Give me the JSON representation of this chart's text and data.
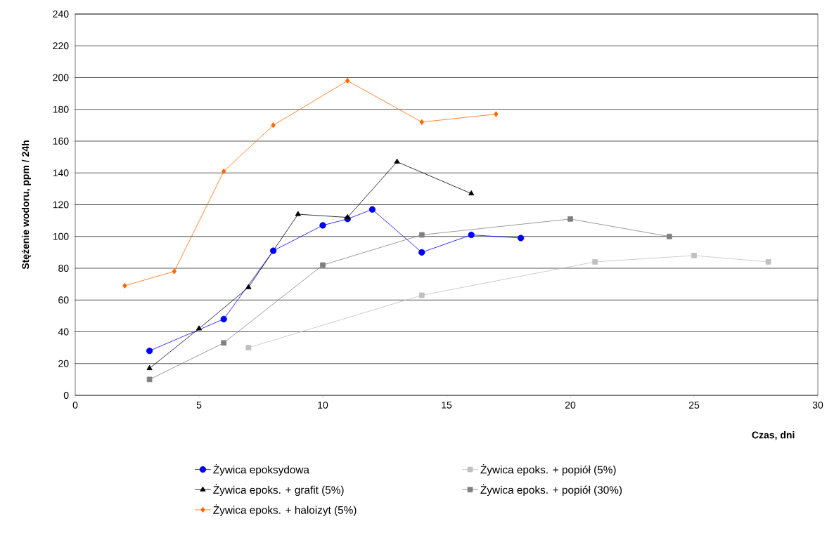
{
  "chart_data": {
    "type": "line",
    "xlabel": "Czas, dni",
    "ylabel": "Stężenie wodoru, ppm / 24h",
    "xlim": [
      0,
      30
    ],
    "xticks": [
      0,
      5,
      10,
      15,
      20,
      25,
      30
    ],
    "ylim": [
      0,
      240
    ],
    "yticks": [
      0,
      20,
      40,
      60,
      80,
      100,
      120,
      140,
      160,
      180,
      200,
      220,
      240
    ],
    "grid": "y",
    "legend": "bottom",
    "series": [
      {
        "name": "Żywica epoksydowa",
        "color": "#0000ff",
        "marker": "circle",
        "x": [
          3,
          6,
          8,
          10,
          11,
          12,
          14,
          16,
          18
        ],
        "values": [
          28,
          48,
          91,
          107,
          111,
          117,
          90,
          101,
          99
        ]
      },
      {
        "name": "Żywica epoks. + grafit (5%)",
        "color": "#000000",
        "marker": "triangle",
        "x": [
          3,
          5,
          7,
          9,
          11,
          13,
          16
        ],
        "values": [
          17,
          42,
          68,
          114,
          112,
          147,
          127
        ]
      },
      {
        "name": "Żywica epoks. + haloizyt (5%)",
        "color": "#ff6600",
        "marker": "diamond",
        "x": [
          2,
          4,
          6,
          8,
          11,
          14,
          17
        ],
        "values": [
          69,
          78,
          141,
          170,
          198,
          172,
          177
        ]
      },
      {
        "name": "Żywica epoks. + popiół (5%)",
        "color": "#c0c0c0",
        "marker": "square",
        "x": [
          7,
          14,
          21,
          25,
          28
        ],
        "values": [
          30,
          63,
          84,
          88,
          84
        ]
      },
      {
        "name": "Żywica epoks. + popiół (30%)",
        "color": "#808080",
        "marker": "square",
        "x": [
          3,
          6,
          10,
          14,
          20,
          24
        ],
        "values": [
          10,
          33,
          82,
          101,
          111,
          100
        ]
      }
    ]
  }
}
